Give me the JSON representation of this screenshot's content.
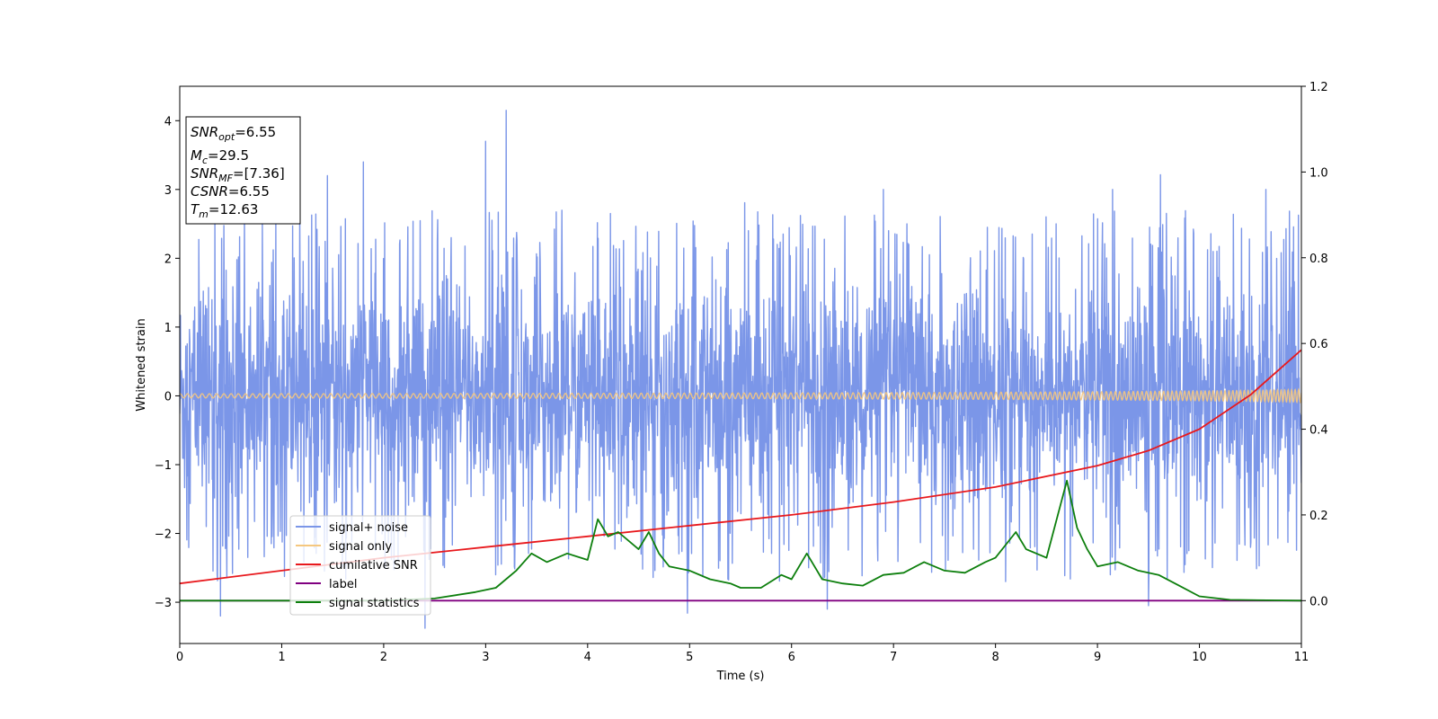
{
  "chart_data": {
    "type": "line",
    "xlabel": "Time (s)",
    "ylabel": "Whitened strain",
    "xlim": [
      0,
      11
    ],
    "ylim": [
      -3.6,
      4.5
    ],
    "y2lim": [
      -0.1,
      1.2
    ],
    "xticks": [
      "0",
      "1",
      "2",
      "3",
      "4",
      "5",
      "6",
      "7",
      "8",
      "9",
      "10",
      "11"
    ],
    "yticks": [
      "−3",
      "−2",
      "−1",
      "0",
      "1",
      "2",
      "3",
      "4"
    ],
    "y2ticks": [
      "0.0",
      "0.2",
      "0.4",
      "0.6",
      "0.8",
      "1.0",
      "1.2"
    ],
    "xtick_values": [
      0,
      1,
      2,
      3,
      4,
      5,
      6,
      7,
      8,
      9,
      10,
      11
    ],
    "ytick_values": [
      -3,
      -2,
      -1,
      0,
      1,
      2,
      3,
      4
    ],
    "y2tick_values": [
      0.0,
      0.2,
      0.4,
      0.6,
      0.8,
      1.0,
      1.2
    ],
    "legend_position": "lower-left",
    "stats_box": {
      "snr_opt": {
        "base": "SNR",
        "sub": "opt",
        "value": "=6.55"
      },
      "mc": {
        "base": "M",
        "sub": "c",
        "value": "=29.5"
      },
      "snr_mf": {
        "base": "SNR",
        "sub": "MF",
        "value": "=[7.36]"
      },
      "csnr": {
        "base": "CSNR",
        "sub": "",
        "value": "=6.55"
      },
      "tm": {
        "base": "T",
        "sub": "m",
        "value": "=12.63"
      }
    },
    "series": [
      {
        "name": "signal+ noise",
        "axis": "left",
        "color": "#7b96e8",
        "noise_band": [
          -1.6,
          1.6
        ],
        "peaks": [
          {
            "x": 0.4,
            "y": -3.2
          },
          {
            "x": 1.45,
            "y": 3.2
          },
          {
            "x": 1.8,
            "y": 3.4
          },
          {
            "x": 3.0,
            "y": 3.7
          },
          {
            "x": 3.2,
            "y": 4.15
          },
          {
            "x": 3.1,
            "y": -2.6
          },
          {
            "x": 6.35,
            "y": -3.1
          },
          {
            "x": 6.9,
            "y": 3.0
          },
          {
            "x": 8.1,
            "y": -2.7
          },
          {
            "x": 9.15,
            "y": 3.0
          },
          {
            "x": 9.5,
            "y": -3.05
          },
          {
            "x": 10.65,
            "y": 3.0
          }
        ]
      },
      {
        "name": "signal only",
        "axis": "left",
        "color": "#f5c77e",
        "chirp": {
          "tc": 12.63,
          "amp_start": 0.03,
          "amp_end": 0.15
        }
      },
      {
        "name": "cumilative SNR",
        "axis": "right",
        "color": "#e8191d",
        "x": [
          0,
          1,
          2,
          3,
          4,
          5,
          6,
          7,
          8,
          9,
          9.5,
          10,
          10.5,
          11
        ],
        "y": [
          0.04,
          0.07,
          0.1,
          0.125,
          0.15,
          0.175,
          0.2,
          0.23,
          0.265,
          0.315,
          0.35,
          0.4,
          0.48,
          0.585
        ]
      },
      {
        "name": "label",
        "axis": "right",
        "color": "#800080",
        "x": [
          0,
          11
        ],
        "y": [
          0.0,
          0.0
        ]
      },
      {
        "name": "signal statistics",
        "axis": "right",
        "color": "#0d7f0d",
        "x": [
          0,
          1,
          2,
          2.5,
          2.9,
          3.1,
          3.3,
          3.45,
          3.6,
          3.8,
          4.0,
          4.1,
          4.2,
          4.3,
          4.5,
          4.6,
          4.7,
          4.8,
          5.0,
          5.2,
          5.4,
          5.5,
          5.7,
          5.9,
          6.0,
          6.15,
          6.3,
          6.5,
          6.7,
          6.9,
          7.1,
          7.3,
          7.5,
          7.7,
          7.9,
          8.0,
          8.2,
          8.3,
          8.5,
          8.7,
          8.8,
          8.9,
          9.0,
          9.2,
          9.4,
          9.6,
          9.8,
          10.0,
          10.3,
          11
        ],
        "y": [
          0.0,
          0.0,
          0.0,
          0.005,
          0.02,
          0.03,
          0.07,
          0.11,
          0.09,
          0.11,
          0.095,
          0.19,
          0.15,
          0.16,
          0.12,
          0.16,
          0.11,
          0.08,
          0.07,
          0.05,
          0.04,
          0.03,
          0.03,
          0.06,
          0.05,
          0.11,
          0.05,
          0.04,
          0.035,
          0.06,
          0.065,
          0.09,
          0.07,
          0.065,
          0.09,
          0.1,
          0.16,
          0.12,
          0.1,
          0.28,
          0.17,
          0.12,
          0.08,
          0.09,
          0.07,
          0.06,
          0.035,
          0.01,
          0.002,
          0.0
        ]
      }
    ]
  }
}
